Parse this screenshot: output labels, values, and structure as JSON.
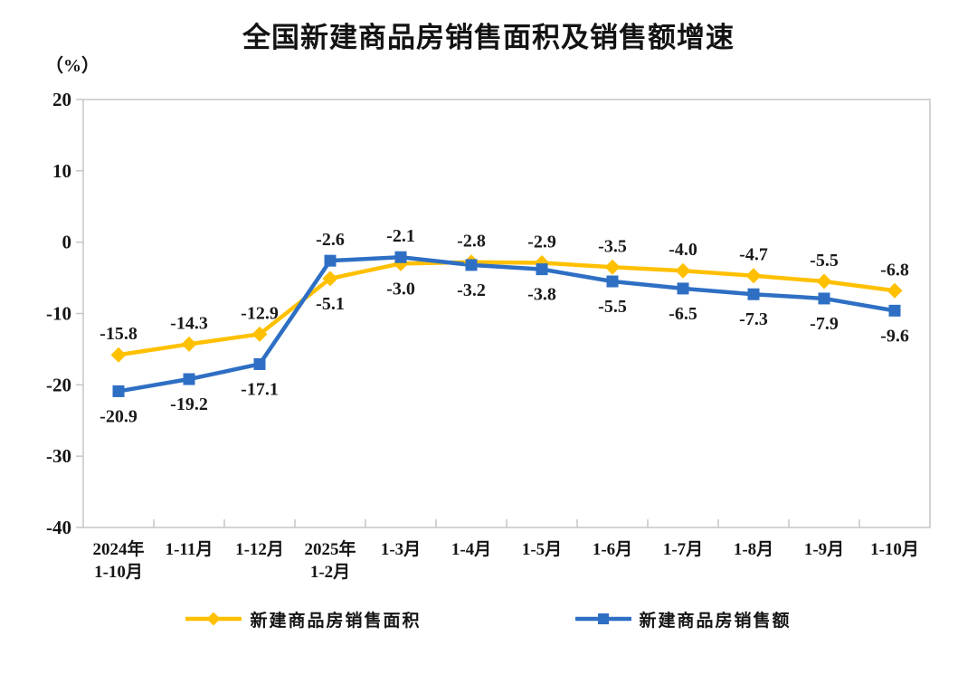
{
  "title": "全国新建商品房销售面积及销售额增速",
  "unit_label": "（%）",
  "chart_data": {
    "type": "line",
    "categories": [
      "2024年\n1-10月",
      "1-11月",
      "1-12月",
      "2025年\n1-2月",
      "1-3月",
      "1-4月",
      "1-5月",
      "1-6月",
      "1-7月",
      "1-8月",
      "1-9月",
      "1-10月"
    ],
    "series": [
      {
        "name": "新建商品房销售面积",
        "color": "#FFC000",
        "marker": "diamond",
        "values": [
          -15.8,
          -14.3,
          -12.9,
          -5.1,
          -3.0,
          -2.8,
          -2.9,
          -3.5,
          -4.0,
          -4.7,
          -5.5,
          -6.8
        ]
      },
      {
        "name": "新建商品房销售额",
        "color": "#2E6FC4",
        "marker": "square",
        "values": [
          -20.9,
          -19.2,
          -17.1,
          -2.6,
          -2.1,
          -3.2,
          -3.8,
          -5.5,
          -6.5,
          -7.3,
          -7.9,
          -9.6
        ]
      }
    ],
    "title": "全国新建商品房销售面积及销售额增速",
    "xlabel": "",
    "ylabel": "（%）",
    "ylim": [
      -40,
      20
    ],
    "yticks": [
      20,
      10,
      0,
      -10,
      -20,
      -30,
      -40
    ],
    "grid": false,
    "value_labels": true,
    "legend_position": "bottom"
  },
  "colors": {
    "axis_border": "#c6c6c6",
    "tick": "#c6c6c6",
    "text": "#151515",
    "background": "#ffffff"
  }
}
